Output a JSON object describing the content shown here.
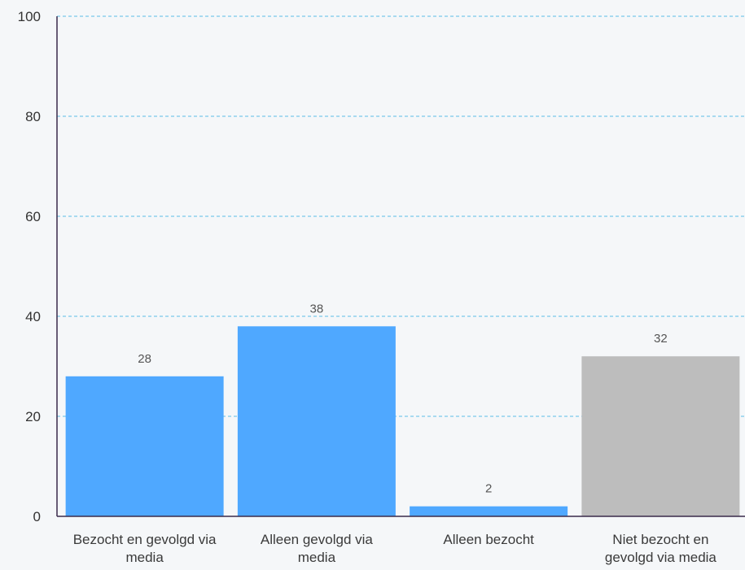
{
  "chart_data": {
    "type": "bar",
    "categories": [
      [
        "Bezocht en gevolgd via",
        "media"
      ],
      [
        "Alleen gevolgd via",
        "media"
      ],
      [
        "Alleen bezocht"
      ],
      [
        "Niet bezocht en",
        "gevolgd via media"
      ]
    ],
    "values": [
      28,
      38,
      2,
      32
    ],
    "data_labels": [
      "28",
      "38",
      "2",
      "32"
    ],
    "bar_colors": [
      "#4fa8ff",
      "#4fa8ff",
      "#4fa8ff",
      "#bdbdbd"
    ],
    "ylim": [
      0,
      100
    ],
    "yticks": [
      0,
      20,
      40,
      60,
      80,
      100
    ],
    "ytick_labels": [
      "0",
      "20",
      "40",
      "60",
      "80",
      "100"
    ],
    "grid": true,
    "grid_color": "#5bbce6",
    "axis_color": "#3a2a4a",
    "title": "",
    "xlabel": "",
    "ylabel": ""
  }
}
